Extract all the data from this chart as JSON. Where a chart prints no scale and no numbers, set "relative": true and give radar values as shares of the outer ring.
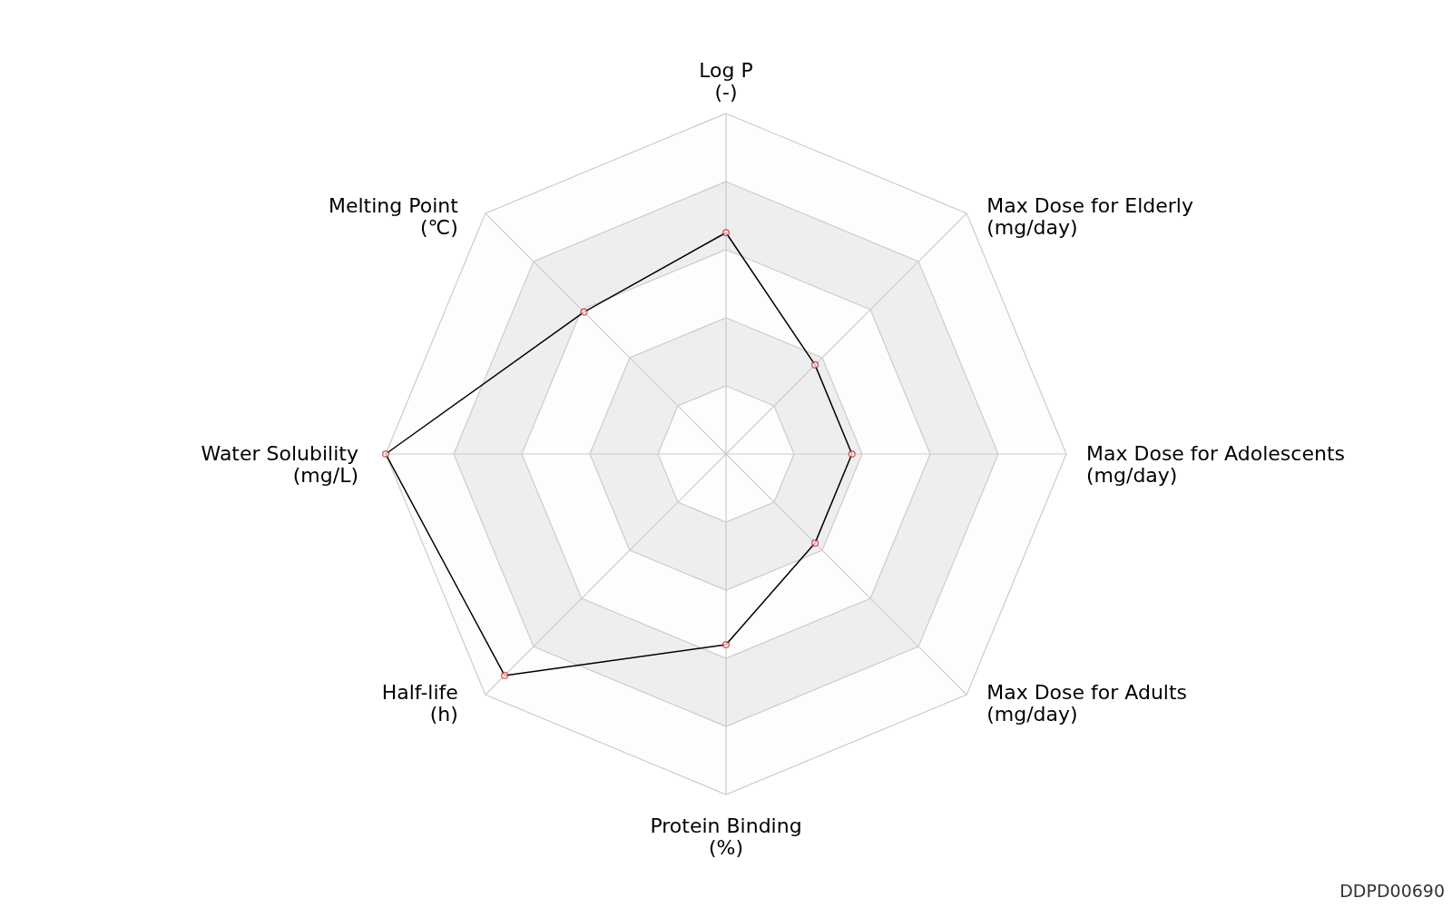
{
  "chart_data": {
    "type": "radar",
    "relative": true,
    "grid": true,
    "marker": "circle",
    "categories": [
      "Log P\n(-)",
      "Max Dose for Elderly\n(mg/day)",
      "Max Dose for Adolescents\n(mg/day)",
      "Max Dose for Adults\n(mg/day)",
      "Protein Binding\n(%)",
      "Half-life\n(h)",
      "Water Solubility\n(mg/L)",
      "Melting Point\n(℃)"
    ],
    "series": [
      {
        "color": "#000000",
        "values": [
          0.65,
          0.37,
          0.37,
          0.37,
          0.56,
          0.92,
          1.0,
          0.59
        ]
      }
    ],
    "annotations": [
      "DDPD00690"
    ]
  }
}
